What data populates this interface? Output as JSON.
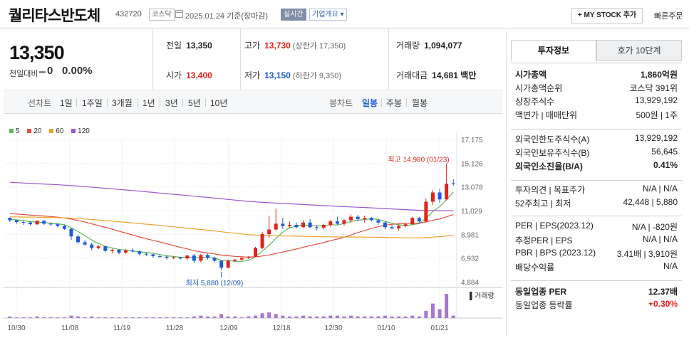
{
  "header": {
    "name": "퀄리타스반도체",
    "code": "432720",
    "market": "코스닥",
    "date_label": "2025.01.24 기준(장마감)",
    "realtime": "실시간",
    "overview": "기업개요 ▾",
    "my_stock": "+ MY STOCK 추가",
    "quick_order": "빠른주문"
  },
  "quote": {
    "price": "13,350",
    "change_label": "전일대비",
    "change": "0",
    "change_pct": "0.00%",
    "prev_label": "전일",
    "prev": "13,350",
    "high_label": "고가",
    "high": "13,730",
    "upper_limit": "(상한가 17,350)",
    "volume_label": "거래량",
    "volume": "1,094,077",
    "open_label": "시가",
    "open": "13,400",
    "low_label": "저가",
    "low": "13,150",
    "lower_limit": "(하한가 9,350)",
    "amount_label": "거래대금",
    "amount": "14,681 백만"
  },
  "period": {
    "line_label": "선차트",
    "line_items": [
      "1일",
      "1주일",
      "3개월",
      "1년",
      "3년",
      "5년",
      "10년"
    ],
    "candle_label": "봉차트",
    "candle_items": [
      "일봉",
      "주봉",
      "월봉"
    ],
    "active": "일봉"
  },
  "chart_data": {
    "type": "candlestick",
    "legend": [
      "5",
      "20",
      "60",
      "120"
    ],
    "legend_colors": [
      "#5cb85c",
      "#e64b3b",
      "#f0a030",
      "#9b59d0"
    ],
    "up_color": "#e0241c",
    "down_color": "#1f5bd6",
    "y_ticks": [
      "17,175",
      "15,126",
      "13,078",
      "11,029",
      "8,981",
      "6,932",
      "4,884"
    ],
    "x_ticks": [
      "10/30",
      "11/08",
      "11/19",
      "11/28",
      "12/09",
      "12/18",
      "12/30",
      "01/10",
      "01/21"
    ],
    "high_annotation": "최고 14,980 (01/23)",
    "low_annotation": "최저 5,880 (12/09)",
    "volume_label": "거래량",
    "ohlc": [
      [
        10400,
        10450,
        10050,
        10200
      ],
      [
        10200,
        10250,
        9900,
        10050
      ],
      [
        10050,
        10150,
        9800,
        10000
      ],
      [
        10000,
        10100,
        9750,
        9850
      ],
      [
        9850,
        10200,
        9800,
        10150
      ],
      [
        10150,
        10200,
        9800,
        9900
      ],
      [
        9900,
        10000,
        9700,
        9850
      ],
      [
        9850,
        9950,
        9600,
        9700
      ],
      [
        9700,
        9800,
        9350,
        9450
      ],
      [
        9450,
        9550,
        8500,
        8800
      ],
      [
        8800,
        8950,
        8150,
        8300
      ],
      [
        8300,
        8500,
        8000,
        8100
      ],
      [
        8100,
        8250,
        7600,
        7800
      ],
      [
        7800,
        8050,
        7700,
        7950
      ],
      [
        7950,
        8000,
        7450,
        7550
      ],
      [
        7550,
        7750,
        7350,
        7650
      ],
      [
        7650,
        7700,
        7250,
        7400
      ],
      [
        7400,
        7700,
        7300,
        7600
      ],
      [
        7600,
        7800,
        7400,
        7500
      ],
      [
        7500,
        7600,
        7150,
        7300
      ],
      [
        7300,
        7450,
        7100,
        7250
      ],
      [
        7250,
        7300,
        6950,
        7100
      ],
      [
        7100,
        7250,
        6900,
        7050
      ],
      [
        7050,
        7150,
        6800,
        6950
      ],
      [
        6950,
        7100,
        6850,
        7000
      ],
      [
        7000,
        7050,
        6800,
        6900
      ],
      [
        6900,
        7200,
        6750,
        7150
      ],
      [
        7150,
        7300,
        6500,
        6700
      ],
      [
        6700,
        7300,
        6550,
        7200
      ],
      [
        7200,
        7300,
        6800,
        6950
      ],
      [
        6950,
        7050,
        6550,
        6700
      ],
      [
        6700,
        6750,
        5880,
        6100
      ],
      [
        6100,
        6800,
        6050,
        6700
      ],
      [
        6700,
        6850,
        6600,
        6800
      ],
      [
        6800,
        7000,
        6700,
        6950
      ],
      [
        6950,
        7100,
        6850,
        7050
      ],
      [
        7050,
        7900,
        7000,
        7800
      ],
      [
        7800,
        9200,
        7700,
        9000
      ],
      [
        9000,
        10600,
        8700,
        9400
      ],
      [
        9400,
        11200,
        9300,
        9900
      ],
      [
        9900,
        10400,
        9450,
        9700
      ],
      [
        9700,
        10100,
        9500,
        9800
      ],
      [
        9800,
        10000,
        9500,
        9600
      ],
      [
        9600,
        10200,
        9500,
        10000
      ],
      [
        10000,
        10300,
        9500,
        9600
      ],
      [
        9600,
        9800,
        9300,
        9550
      ],
      [
        9550,
        9900,
        9400,
        9800
      ],
      [
        9800,
        10200,
        9600,
        10100
      ],
      [
        10100,
        10500,
        9800,
        9900
      ],
      [
        9900,
        10300,
        9750,
        10200
      ],
      [
        10200,
        10700,
        10000,
        10500
      ],
      [
        10500,
        10650,
        10100,
        10300
      ],
      [
        10300,
        10600,
        10000,
        10400
      ],
      [
        10400,
        10500,
        10100,
        10200
      ],
      [
        10200,
        10300,
        9800,
        10000
      ],
      [
        10000,
        10100,
        9400,
        9600
      ],
      [
        9600,
        9800,
        9400,
        9500
      ],
      [
        9500,
        9800,
        9300,
        9700
      ],
      [
        9700,
        10000,
        9600,
        9850
      ],
      [
        9850,
        10500,
        9800,
        10400
      ],
      [
        10400,
        10500,
        9900,
        10100
      ],
      [
        10100,
        12100,
        10000,
        11800
      ],
      [
        11800,
        12800,
        11500,
        12600
      ],
      [
        12600,
        12900,
        11700,
        12000
      ],
      [
        12000,
        14980,
        11900,
        13350
      ],
      [
        13400,
        13730,
        13150,
        13350
      ]
    ],
    "volume": [
      2,
      1,
      1,
      1,
      2,
      1,
      1,
      1,
      1,
      3,
      2,
      1,
      2,
      1,
      1,
      1,
      1,
      1,
      1,
      1,
      1,
      1,
      1,
      1,
      1,
      1,
      1,
      2,
      3,
      2,
      2,
      5,
      2,
      2,
      1,
      2,
      3,
      6,
      7,
      5,
      3,
      2,
      2,
      3,
      2,
      2,
      2,
      3,
      3,
      2,
      3,
      2,
      2,
      2,
      2,
      3,
      2,
      2,
      2,
      3,
      2,
      9,
      18,
      11,
      30,
      3
    ]
  },
  "panel": {
    "tab_active": "투자정보",
    "tab_other": "호가 10단계",
    "rows1": [
      {
        "k": "시가총액",
        "v": "1,860억원",
        "bold": true
      },
      {
        "k": "시가총액순위",
        "v": "코스닥 391위"
      },
      {
        "k": "상장주식수",
        "v": "13,929,192"
      },
      {
        "k": "액면가 | 매매단위",
        "v": "500원 | 1주"
      }
    ],
    "rows2": [
      {
        "k": "외국인한도주식수(A)",
        "v": "13,929,192"
      },
      {
        "k": "외국인보유주식수(B)",
        "v": "56,645"
      },
      {
        "k": "외국인소진율(B/A)",
        "v": "0.41%",
        "bold": true
      }
    ],
    "rows3": [
      {
        "k": "투자의견 | 목표주가",
        "v": "N/A | N/A"
      },
      {
        "k": "52주최고 | 최저",
        "v": "42,448 | 5,880"
      }
    ],
    "rows4": [
      {
        "k": "PER | EPS(2023.12)",
        "v": "N/A | -820원"
      },
      {
        "k": "추정PER | EPS",
        "v": "N/A | N/A"
      },
      {
        "k": "PBR | BPS (2023.12)",
        "v": "3.41배 | 3,910원"
      },
      {
        "k": "배당수익률",
        "v": "N/A"
      }
    ],
    "rows5": [
      {
        "k": "동일업종 PER",
        "v": "12.37배",
        "bold": true
      },
      {
        "k": "동일업종 등락률",
        "v": "+0.30%",
        "red": true
      }
    ]
  }
}
